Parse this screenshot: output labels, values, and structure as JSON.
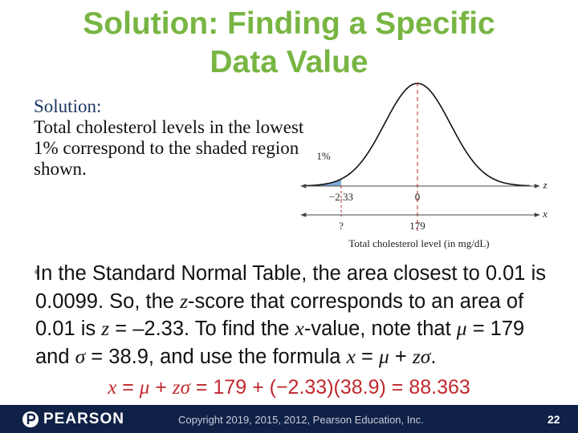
{
  "header": {
    "title_lines": [
      "Solution: Finding a Specific",
      "Data Value"
    ]
  },
  "intro": {
    "heading": "Solution:",
    "text": "Total cholesterol levels in the lowest 1% correspond to the shaded region shown."
  },
  "figure": {
    "area_label": "1%",
    "z_axis": "z",
    "z_left": "−2.33",
    "z_center": "0",
    "x_axis": "x",
    "x_left": "?",
    "x_center": "179",
    "caption": "Total cholesterol level (in mg/dL)"
  },
  "bullet": {
    "runs": [
      "In the Standard Normal Table, the area closest to 0.01 is 0.0099. So, the ",
      "z",
      "-score that corresponds to an area of 0.01 is ",
      "z",
      " = –2.33. To find the ",
      "x",
      "-value, note that ",
      "μ",
      " = 179 and ",
      "σ",
      " = 38.9, and use the formula ",
      "x",
      " = ",
      "μ",
      " + ",
      "zσ",
      "."
    ]
  },
  "formula": {
    "runs": [
      "x",
      " = ",
      "μ",
      " + ",
      "zσ",
      " = 179 + (−2.33)(38.9) = 88.363"
    ]
  },
  "footer": {
    "brand": "PEARSON",
    "copyright": "Copyright 2019, 2015, 2012, Pearson Education, Inc.",
    "page": "22"
  }
}
